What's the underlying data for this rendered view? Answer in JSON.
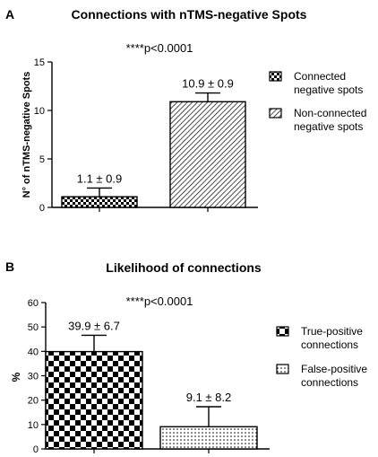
{
  "chart_data": [
    {
      "panel_label": "A",
      "type": "bar",
      "title": "Connections with nTMS-negative Spots",
      "significance": "****p<0.0001",
      "xlabel": "",
      "ylabel": "N° of nTMS-negative Spots",
      "ylim": [
        0,
        15
      ],
      "yticks": [
        "0",
        "5",
        "10",
        "15"
      ],
      "categories": [
        "Connected negative spots",
        "Non-connected negative spots"
      ],
      "values": [
        1.1,
        10.9
      ],
      "errors": [
        0.9,
        0.9
      ],
      "data_labels": [
        "1.1 ± 0.9",
        "10.9 ± 0.9"
      ],
      "legend": [
        {
          "line1": "Connected",
          "line2": "negative spots",
          "pattern": "small-checker"
        },
        {
          "line1": "Non-connected",
          "line2": "negative spots",
          "pattern": "diagonal-hatch"
        }
      ],
      "legend_position": "right",
      "grid": false
    },
    {
      "panel_label": "B",
      "type": "bar",
      "title": "Likelihood of connections",
      "significance": "****p<0.0001",
      "xlabel": "",
      "ylabel": "%",
      "ylim": [
        0,
        60
      ],
      "yticks": [
        "0",
        "10",
        "20",
        "30",
        "40",
        "50",
        "60"
      ],
      "categories": [
        "True-positive connections",
        "False-positive connections"
      ],
      "values": [
        39.9,
        9.1
      ],
      "errors": [
        6.7,
        8.2
      ],
      "data_labels": [
        "39.9 ± 6.7",
        "9.1 ± 8.2"
      ],
      "legend": [
        {
          "line1": "True-positive",
          "line2": "connections",
          "pattern": "large-checker"
        },
        {
          "line1": "False-positive",
          "line2": "connections",
          "pattern": "dots"
        }
      ],
      "legend_position": "right",
      "grid": false
    }
  ]
}
